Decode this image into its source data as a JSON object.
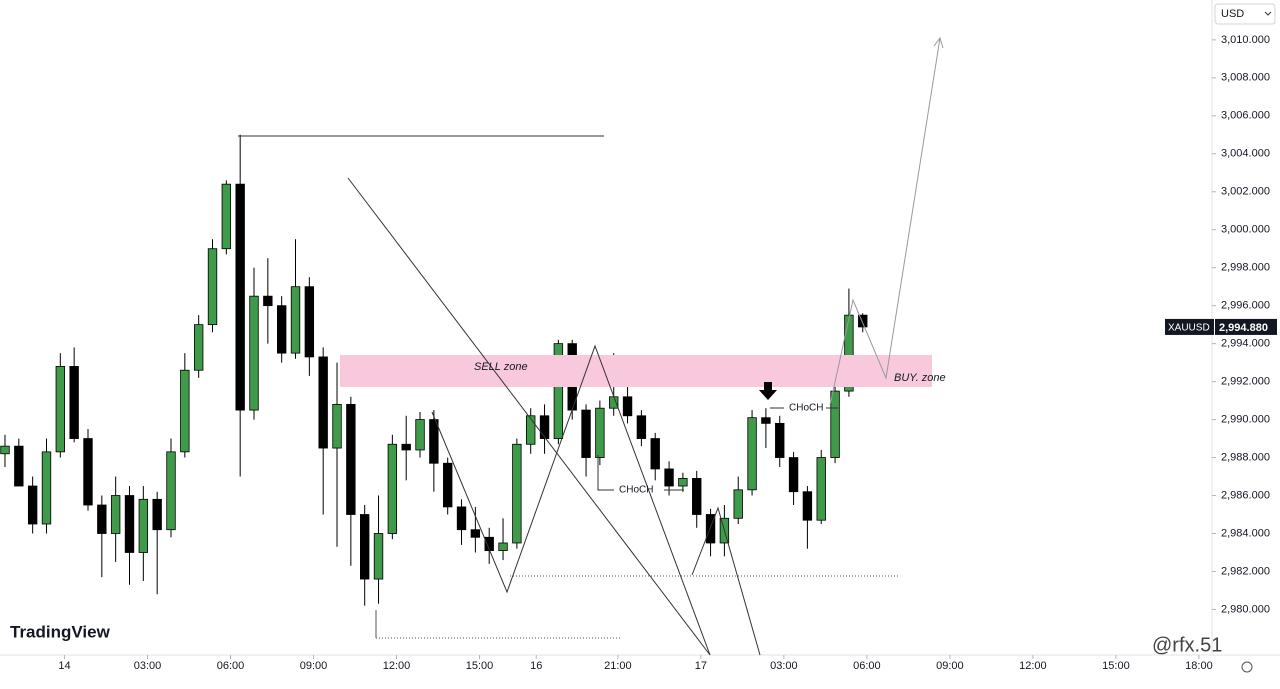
{
  "chart_data": {
    "type": "candlestick",
    "currency": "USD",
    "up_color": "#3f9a4a",
    "down_color": "#000000",
    "open": [
      2988.2,
      2988.6,
      2986.5,
      2984.5,
      2988.3,
      2992.8,
      2989,
      2985.5,
      2984,
      2986,
      2983,
      2985.8,
      2984.2,
      2988.3,
      2992.6,
      2995,
      2999,
      3002.4,
      2990.5,
      2996.5,
      2996,
      2993.5,
      2997,
      2993.3,
      2988.5,
      2990.8,
      2985,
      2981.6,
      2984,
      2988.7,
      2988.4,
      2990,
      2987.7,
      2985.4,
      2984.2,
      2983.8,
      2983.1,
      2983.5,
      2988.7,
      2990.2,
      2989,
      2994,
      2990.5,
      2988,
      2990.6,
      2991.2,
      2990.2,
      2989,
      2987.4,
      2986.5,
      2986.9,
      2985,
      2983.5,
      2984.8,
      2986.3,
      2990.1,
      2989.8,
      2988,
      2986.2,
      2984.7,
      2988,
      2991.5,
      2995.5
    ],
    "high": [
      2989.2,
      2989,
      2987,
      2989,
      2993.5,
      2993.8,
      2989.5,
      2986,
      2987,
      2986.5,
      2986.5,
      2986.2,
      2989,
      2993.5,
      2995.5,
      2999.5,
      3002.6,
      3005,
      2998,
      2998.5,
      2996.5,
      2999.5,
      2997.5,
      2993.8,
      2993,
      2991.2,
      2985.5,
      2986,
      2989.2,
      2990.2,
      2990.4,
      2990.5,
      2988,
      2985.8,
      2985.4,
      2984.3,
      2984.8,
      2989,
      2990.6,
      2990.8,
      2994.2,
      2994.2,
      2990.8,
      2991,
      2993.5,
      2992.5,
      2990.5,
      2989.3,
      2987.8,
      2987.2,
      2987.3,
      2985.3,
      2985.5,
      2987,
      2990.5,
      2990.6,
      2990.2,
      2988.3,
      2986.5,
      2988.4,
      2991.8,
      2996.9,
      2995.6
    ],
    "low": [
      2987.5,
      2986.5,
      2984,
      2984,
      2988,
      2988.8,
      2985.2,
      2981.7,
      2982.5,
      2981.3,
      2981.5,
      2980.8,
      2983.8,
      2988,
      2992.2,
      2994.6,
      2998.7,
      2987,
      2990,
      2994,
      2993,
      2993.2,
      2992.3,
      2985,
      2983.3,
      2982.3,
      2980.2,
      2980.3,
      2983.7,
      2986.8,
      2988,
      2986.2,
      2985,
      2983.4,
      2983,
      2982.4,
      2982.6,
      2983.2,
      2988.2,
      2988.2,
      2988.7,
      2990,
      2987,
      2987.6,
      2990.2,
      2989.8,
      2988.6,
      2986.8,
      2986,
      2986.2,
      2984.3,
      2982.8,
      2982.8,
      2984.5,
      2986,
      2988.5,
      2987.5,
      2985.5,
      2983.2,
      2984.5,
      2987.7,
      2991.2,
      2994.6
    ],
    "close": [
      2988.6,
      2986.5,
      2984.5,
      2988.3,
      2992.8,
      2989,
      2985.5,
      2984,
      2986,
      2983,
      2985.8,
      2984.2,
      2988.3,
      2992.6,
      2995,
      2999,
      3002.4,
      2990.5,
      2996.5,
      2996,
      2993.5,
      2997,
      2993.3,
      2988.5,
      2990.8,
      2985,
      2981.6,
      2984,
      2988.7,
      2988.4,
      2990,
      2987.7,
      2985.4,
      2984.2,
      2983.8,
      2983.1,
      2983.5,
      2988.7,
      2990.2,
      2989,
      2994,
      2990.5,
      2988,
      2990.6,
      2991.2,
      2990.2,
      2989,
      2987.4,
      2986.5,
      2986.9,
      2985,
      2983.5,
      2984.8,
      2986.3,
      2990.1,
      2989.8,
      2988,
      2986.2,
      2984.7,
      2988,
      2991.5,
      2995.5,
      2994.88
    ],
    "xlim": [
      -0.36,
      87.1
    ],
    "xticks": [
      {
        "value": 4.3,
        "label": "14"
      },
      {
        "value": 10.3,
        "label": "03:00"
      },
      {
        "value": 16.3,
        "label": "06:00"
      },
      {
        "value": 22.3,
        "label": "09:00"
      },
      {
        "value": 28.3,
        "label": "12:00"
      },
      {
        "value": 34.3,
        "label": "15:00"
      },
      {
        "value": 38.4,
        "label": "16"
      },
      {
        "value": 44.3,
        "label": "21:00"
      },
      {
        "value": 50.3,
        "label": "17"
      },
      {
        "value": 56.3,
        "label": "03:00"
      },
      {
        "value": 62.3,
        "label": "06:00"
      },
      {
        "value": 68.3,
        "label": "09:00"
      },
      {
        "value": 74.3,
        "label": "12:00"
      },
      {
        "value": 80.3,
        "label": "15:00"
      },
      {
        "value": 86.3,
        "label": "18:00"
      }
    ],
    "ylim": [
      2977.6,
      3012.1
    ],
    "yticks": [
      {
        "value": 2980,
        "label": "2,980.000"
      },
      {
        "value": 2982,
        "label": "2,982.000"
      },
      {
        "value": 2984,
        "label": "2,984.000"
      },
      {
        "value": 2986,
        "label": "2,986.000"
      },
      {
        "value": 2988,
        "label": "2,988.000"
      },
      {
        "value": 2990,
        "label": "2,990.000"
      },
      {
        "value": 2992,
        "label": "2,992.000"
      },
      {
        "value": 2994,
        "label": "2,994.000"
      },
      {
        "value": 2996,
        "label": "2,996.000"
      },
      {
        "value": 2998,
        "label": "2,998.000"
      },
      {
        "value": 3000,
        "label": "3,000.000"
      },
      {
        "value": 3002,
        "label": "3,002.000"
      },
      {
        "value": 3004,
        "label": "3,004.000"
      },
      {
        "value": 3006,
        "label": "3,006.000"
      },
      {
        "value": 3008,
        "label": "3,008.000"
      },
      {
        "value": 3010,
        "label": "3,010.000"
      }
    ],
    "price_tag": {
      "symbol": "XAUUSD",
      "value": 2994.88,
      "label": "2,994.880"
    },
    "annotations": {
      "sell_zone": "SELL zone",
      "buy_zone": "BUY. zone",
      "choch_1": "CHoCH",
      "choch_2": "CHoCH"
    },
    "logo": "TradingView",
    "watermark": "@rfx.51"
  }
}
